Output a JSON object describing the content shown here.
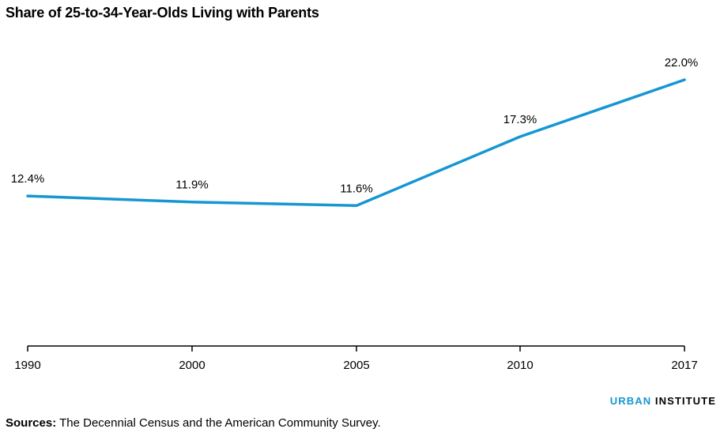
{
  "title": "Share of 25-to-34-Year-Olds Living with Parents",
  "source": {
    "label": "Sources:",
    "text": "The Decennial Census and the American Community Survey."
  },
  "brand": {
    "part1": "URBAN",
    "part2": "INSTITUTE"
  },
  "colors": {
    "line": "#1696d2",
    "axis": "#000000",
    "brand": "#1696d2"
  },
  "chart_data": {
    "type": "line",
    "title": "Share of 25-to-34-Year-Olds Living with Parents",
    "x": [
      "1990",
      "2000",
      "2005",
      "2010",
      "2017"
    ],
    "series": [
      {
        "values": [
          12.4,
          11.9,
          11.6,
          17.3,
          22.0
        ],
        "labels": [
          "12.4%",
          "11.9%",
          "11.6%",
          "17.3%",
          "22.0%"
        ]
      }
    ],
    "xlabel": "",
    "ylabel": "",
    "ylim": [
      0,
      22.0
    ],
    "grid": false,
    "legend": "none"
  }
}
